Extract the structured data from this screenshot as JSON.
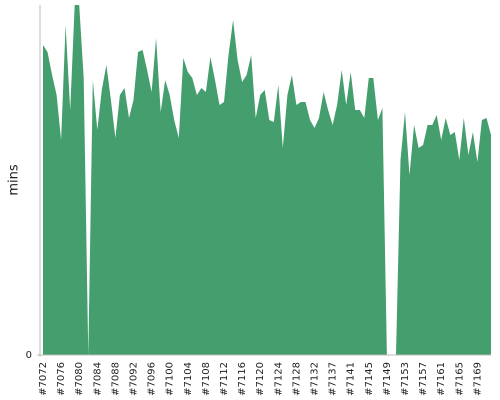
{
  "chart_data": {
    "type": "area",
    "y_label": "mins",
    "color": "#459e6e",
    "ylim": [
      0,
      35
    ],
    "yticks": [
      0
    ],
    "categories": [
      "#7072",
      null,
      null,
      null,
      "#7076",
      null,
      null,
      null,
      "#7080",
      null,
      null,
      null,
      "#7084",
      null,
      null,
      null,
      "#7088",
      null,
      null,
      null,
      "#7092",
      null,
      null,
      null,
      "#7096",
      null,
      null,
      null,
      "#7100",
      null,
      null,
      null,
      "#7104",
      null,
      null,
      null,
      "#7108",
      null,
      null,
      null,
      "#7112",
      null,
      null,
      null,
      "#7116",
      null,
      null,
      null,
      "#7120",
      null,
      null,
      null,
      "#7124",
      null,
      null,
      null,
      "#7128",
      null,
      null,
      null,
      "#7132",
      null,
      null,
      null,
      "#7137",
      null,
      null,
      null,
      "#7141",
      null,
      null,
      null,
      "#7145",
      null,
      null,
      null,
      "#7149",
      null,
      null,
      null,
      "#7153",
      null,
      null,
      null,
      "#7157",
      null,
      null,
      null,
      "#7161",
      null,
      null,
      null,
      "#7165",
      null,
      null,
      null,
      "#7169",
      null,
      null,
      null
    ],
    "values": [
      31.0,
      30.3,
      28,
      26,
      21.5,
      33,
      24.5,
      35,
      35,
      27.7,
      0,
      27.5,
      22.5,
      26.5,
      29,
      25.5,
      21.7,
      26,
      26.7,
      23.7,
      25.5,
      30.3,
      30.5,
      28.5,
      26.3,
      31.7,
      24.3,
      27.5,
      26,
      23.5,
      21.7,
      29.7,
      28.3,
      27.7,
      26,
      26.7,
      26.3,
      29.8,
      27.5,
      25,
      25.3,
      30,
      33.5,
      29.5,
      27.3,
      28,
      30,
      23.7,
      26,
      26.5,
      23.5,
      23.3,
      27,
      20.7,
      26,
      28,
      25,
      25.3,
      25.3,
      23.5,
      22.7,
      23.7,
      26.3,
      24.5,
      23,
      25,
      28.5,
      25,
      28.3,
      24.5,
      24.5,
      23.7,
      27.7,
      27.7,
      23.5,
      24.7,
      0,
      0,
      0,
      19.5,
      24.3,
      18,
      23,
      20.7,
      21,
      23,
      23,
      24,
      21.5,
      23.7,
      22,
      22.3,
      19.5,
      23.7,
      20,
      22.3,
      19.3,
      23.5,
      23.7,
      22
    ]
  }
}
